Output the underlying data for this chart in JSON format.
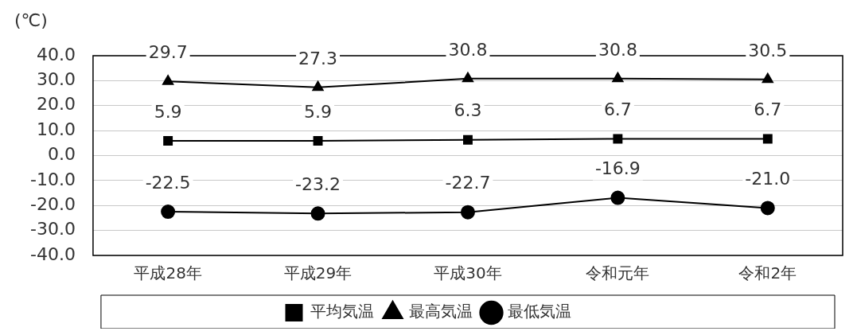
{
  "chart_data": {
    "type": "line",
    "ylabel": "(℃)",
    "categories": [
      "平成28年",
      "平成29年",
      "平成30年",
      "令和元年",
      "令和2年"
    ],
    "series": [
      {
        "name": "平均気温",
        "color": "#000000",
        "marker": "square",
        "values": [
          5.9,
          5.9,
          6.3,
          6.7,
          6.7
        ],
        "value_labels": [
          "5.9",
          "5.9",
          "6.3",
          "6.7",
          "6.7"
        ]
      },
      {
        "name": "最高気温",
        "color": "#000000",
        "marker": "triangle",
        "values": [
          29.7,
          27.3,
          30.8,
          30.8,
          30.5
        ],
        "value_labels": [
          "29.7",
          "27.3",
          "30.8",
          "30.8",
          "30.5"
        ]
      },
      {
        "name": "最低気温",
        "color": "#000000",
        "marker": "circle",
        "values": [
          -22.5,
          -23.2,
          -22.7,
          -16.9,
          -21.0
        ],
        "value_labels": [
          "-22.5",
          "-23.2",
          "-22.7",
          "-16.9",
          "-21.0"
        ]
      }
    ],
    "ylim": [
      -40,
      40
    ],
    "yticks": [
      {
        "value": -40,
        "label": "-40.0"
      },
      {
        "value": -30,
        "label": "-30.0"
      },
      {
        "value": -20,
        "label": "-20.0"
      },
      {
        "value": -10,
        "label": "-10.0"
      },
      {
        "value": 0,
        "label": "0.0"
      },
      {
        "value": 10,
        "label": "10.0"
      },
      {
        "value": 20,
        "label": "20.0"
      },
      {
        "value": 30,
        "label": "30.0"
      },
      {
        "value": 40,
        "label": "40.0"
      }
    ],
    "grid": "y",
    "legend": "bottom",
    "line_style": "solid"
  }
}
